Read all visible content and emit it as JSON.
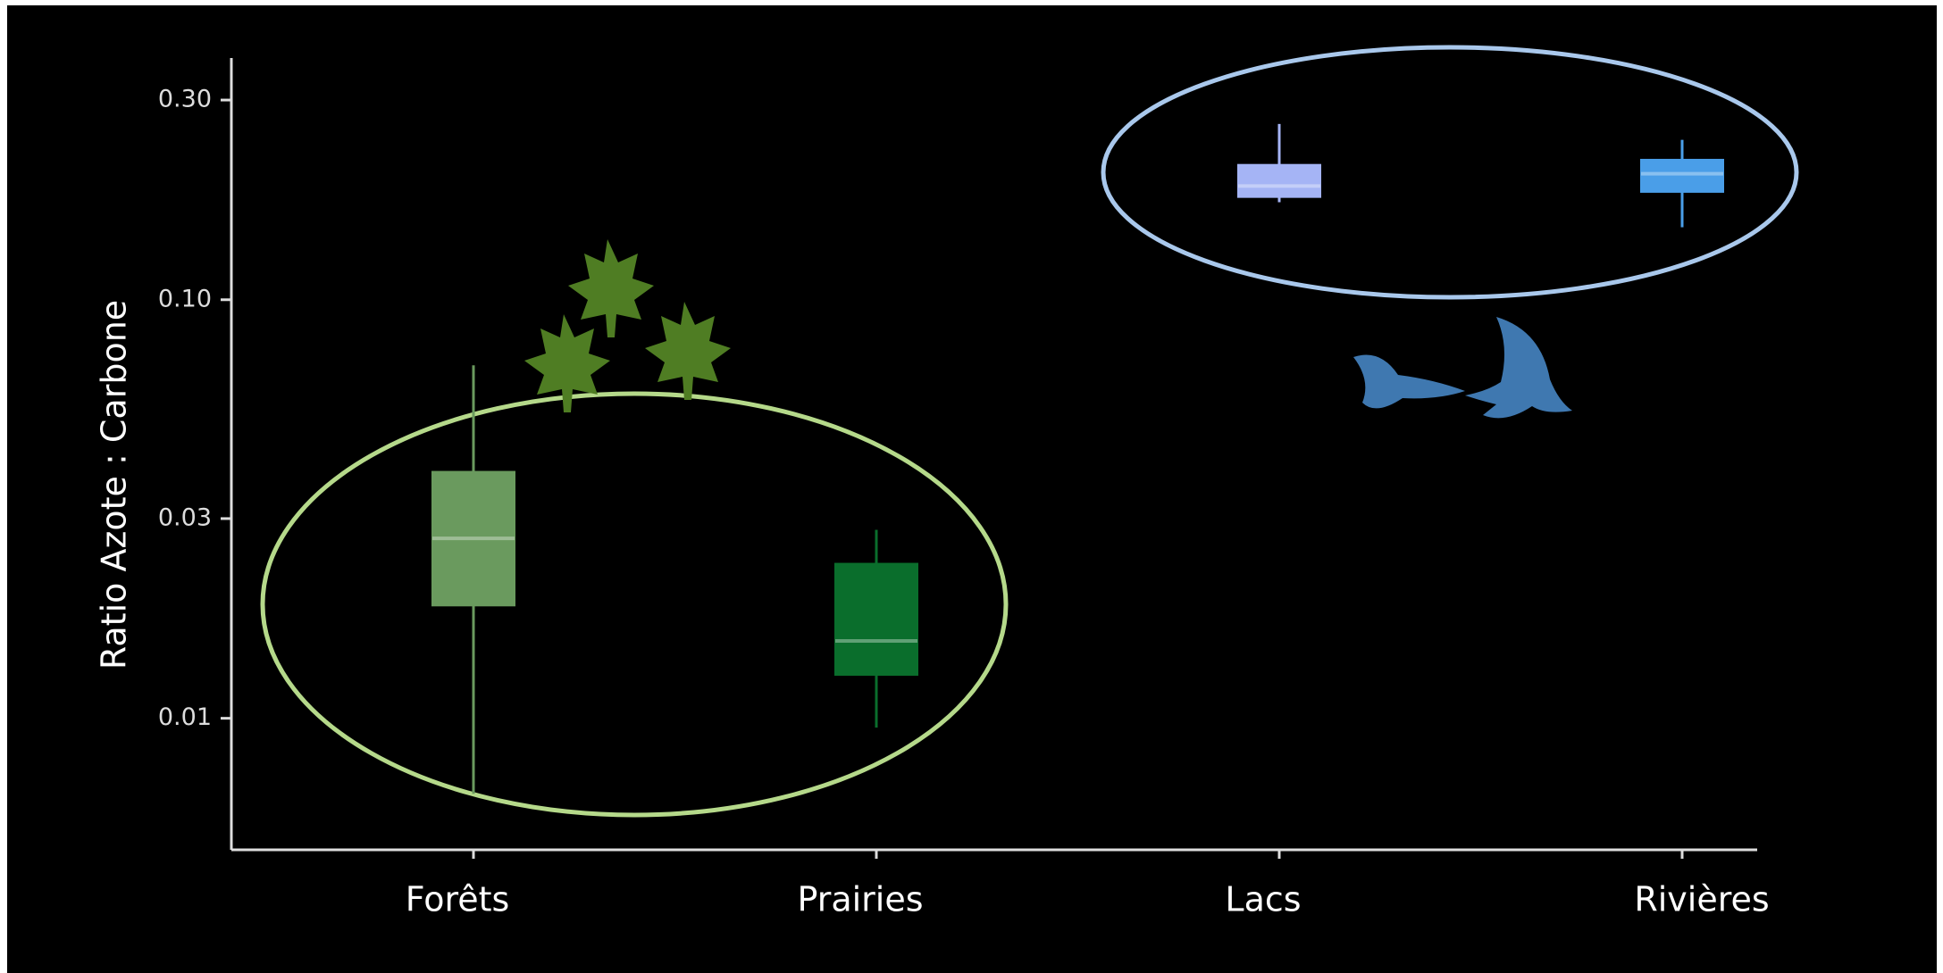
{
  "chart_data": {
    "type": "box",
    "y_label": "Ratio Azote : Carbone",
    "categories": [
      "Forêts",
      "Prairies",
      "Lacs",
      "Rivières"
    ],
    "boxes": [
      {
        "min": 0.0066,
        "q1": 0.0186,
        "median": 0.0269,
        "q3": 0.0388,
        "max": 0.0697
      },
      {
        "min": 0.0095,
        "q1": 0.0127,
        "median": 0.0153,
        "q3": 0.0234,
        "max": 0.0282
      },
      {
        "min": 0.171,
        "q1": 0.176,
        "median": 0.187,
        "q3": 0.21,
        "max": 0.263
      },
      {
        "min": 0.149,
        "q1": 0.181,
        "median": 0.2,
        "q3": 0.216,
        "max": 0.241
      }
    ],
    "colors": [
      "#6a9a5e",
      "#0a6e2c",
      "#a5b4f5",
      "#4a9ee8"
    ],
    "log_scale": true,
    "ylim": [
      0.00485,
      0.378
    ],
    "yticks": [
      0.01,
      0.03,
      {
        "value": 0.1,
        "label": "0.10"
      },
      {
        "value": 0.3,
        "label": "0.30"
      }
    ]
  }
}
